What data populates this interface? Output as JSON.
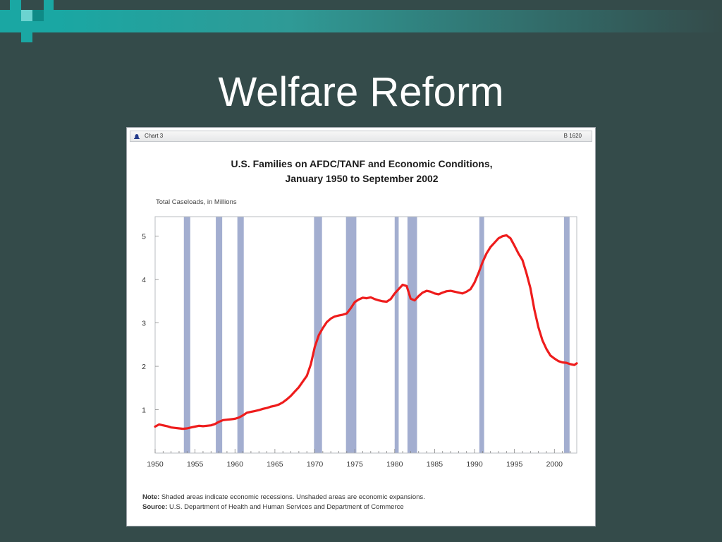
{
  "slide": {
    "title": "Welfare Reform"
  },
  "panel": {
    "header_label": "Chart 3",
    "header_id": "B 1620"
  },
  "chart_data": {
    "type": "line",
    "title_line1": "U.S. Families on AFDC/TANF and Economic Conditions,",
    "title_line2": "January 1950 to September 2002",
    "ylabel": "Total Caseloads, in Millions",
    "xlim": [
      1950,
      2002.8
    ],
    "ylim": [
      0,
      5.45
    ],
    "x_ticks": [
      1950,
      1955,
      1960,
      1965,
      1970,
      1975,
      1980,
      1985,
      1990,
      1995,
      2000
    ],
    "y_ticks": [
      1,
      2,
      3,
      4,
      5
    ],
    "grid": false,
    "series": [
      {
        "color": "#ee1c1c",
        "x": [
          1950.0,
          1950.5,
          1951.0,
          1951.5,
          1952.0,
          1952.5,
          1953.0,
          1953.5,
          1954.0,
          1954.5,
          1955.0,
          1955.5,
          1956.0,
          1956.5,
          1957.0,
          1957.5,
          1958.0,
          1958.5,
          1959.0,
          1959.5,
          1960.0,
          1960.5,
          1961.0,
          1961.5,
          1962.0,
          1962.5,
          1963.0,
          1963.5,
          1964.0,
          1964.5,
          1965.0,
          1965.5,
          1966.0,
          1966.5,
          1967.0,
          1967.5,
          1968.0,
          1968.5,
          1969.0,
          1969.5,
          1970.0,
          1970.5,
          1971.0,
          1971.5,
          1972.0,
          1972.5,
          1973.0,
          1973.5,
          1974.0,
          1974.5,
          1975.0,
          1975.5,
          1976.0,
          1976.5,
          1977.0,
          1977.5,
          1978.0,
          1978.5,
          1979.0,
          1979.5,
          1980.0,
          1980.5,
          1981.0,
          1981.5,
          1982.0,
          1982.5,
          1983.0,
          1983.5,
          1984.0,
          1984.5,
          1985.0,
          1985.5,
          1986.0,
          1986.5,
          1987.0,
          1987.5,
          1988.0,
          1988.5,
          1989.0,
          1989.5,
          1990.0,
          1990.5,
          1991.0,
          1991.5,
          1992.0,
          1992.5,
          1993.0,
          1993.5,
          1994.0,
          1994.5,
          1995.0,
          1995.5,
          1996.0,
          1996.5,
          1997.0,
          1997.5,
          1998.0,
          1998.5,
          1999.0,
          1999.5,
          2000.0,
          2000.5,
          2001.0,
          2001.5,
          2002.0,
          2002.5,
          2002.8
        ],
        "y": [
          0.61,
          0.66,
          0.64,
          0.62,
          0.59,
          0.58,
          0.57,
          0.56,
          0.57,
          0.59,
          0.61,
          0.63,
          0.62,
          0.63,
          0.64,
          0.67,
          0.72,
          0.76,
          0.77,
          0.78,
          0.79,
          0.82,
          0.87,
          0.93,
          0.95,
          0.97,
          0.99,
          1.02,
          1.04,
          1.07,
          1.09,
          1.12,
          1.17,
          1.24,
          1.32,
          1.42,
          1.52,
          1.65,
          1.78,
          2.05,
          2.45,
          2.72,
          2.88,
          3.02,
          3.1,
          3.15,
          3.17,
          3.19,
          3.22,
          3.34,
          3.48,
          3.54,
          3.58,
          3.57,
          3.59,
          3.55,
          3.52,
          3.5,
          3.49,
          3.55,
          3.68,
          3.78,
          3.88,
          3.85,
          3.56,
          3.52,
          3.62,
          3.7,
          3.74,
          3.72,
          3.68,
          3.66,
          3.7,
          3.73,
          3.74,
          3.72,
          3.7,
          3.68,
          3.72,
          3.78,
          3.93,
          4.15,
          4.4,
          4.6,
          4.75,
          4.85,
          4.95,
          5.0,
          5.02,
          4.95,
          4.78,
          4.6,
          4.45,
          4.15,
          3.8,
          3.3,
          2.9,
          2.6,
          2.4,
          2.25,
          2.18,
          2.12,
          2.09,
          2.08,
          2.05,
          2.03,
          2.07
        ]
      }
    ],
    "recessions": [
      [
        1953.6,
        1954.4
      ],
      [
        1957.6,
        1958.4
      ],
      [
        1960.3,
        1961.1
      ],
      [
        1969.9,
        1970.9
      ],
      [
        1973.9,
        1975.2
      ],
      [
        1980.0,
        1980.5
      ],
      [
        1981.6,
        1982.8
      ],
      [
        1990.6,
        1991.2
      ],
      [
        2001.2,
        2001.9
      ]
    ],
    "note_label": "Note:",
    "note_text": "Shaded areas indicate economic recessions. Unshaded areas are economic expansions.",
    "source_label": "Source:",
    "source_text": "U.S. Department of Health and Human Services and Department of Commerce",
    "colors": {
      "line": "#ee1c1c",
      "recession": "#a3aed0",
      "axis": "#888888"
    }
  }
}
